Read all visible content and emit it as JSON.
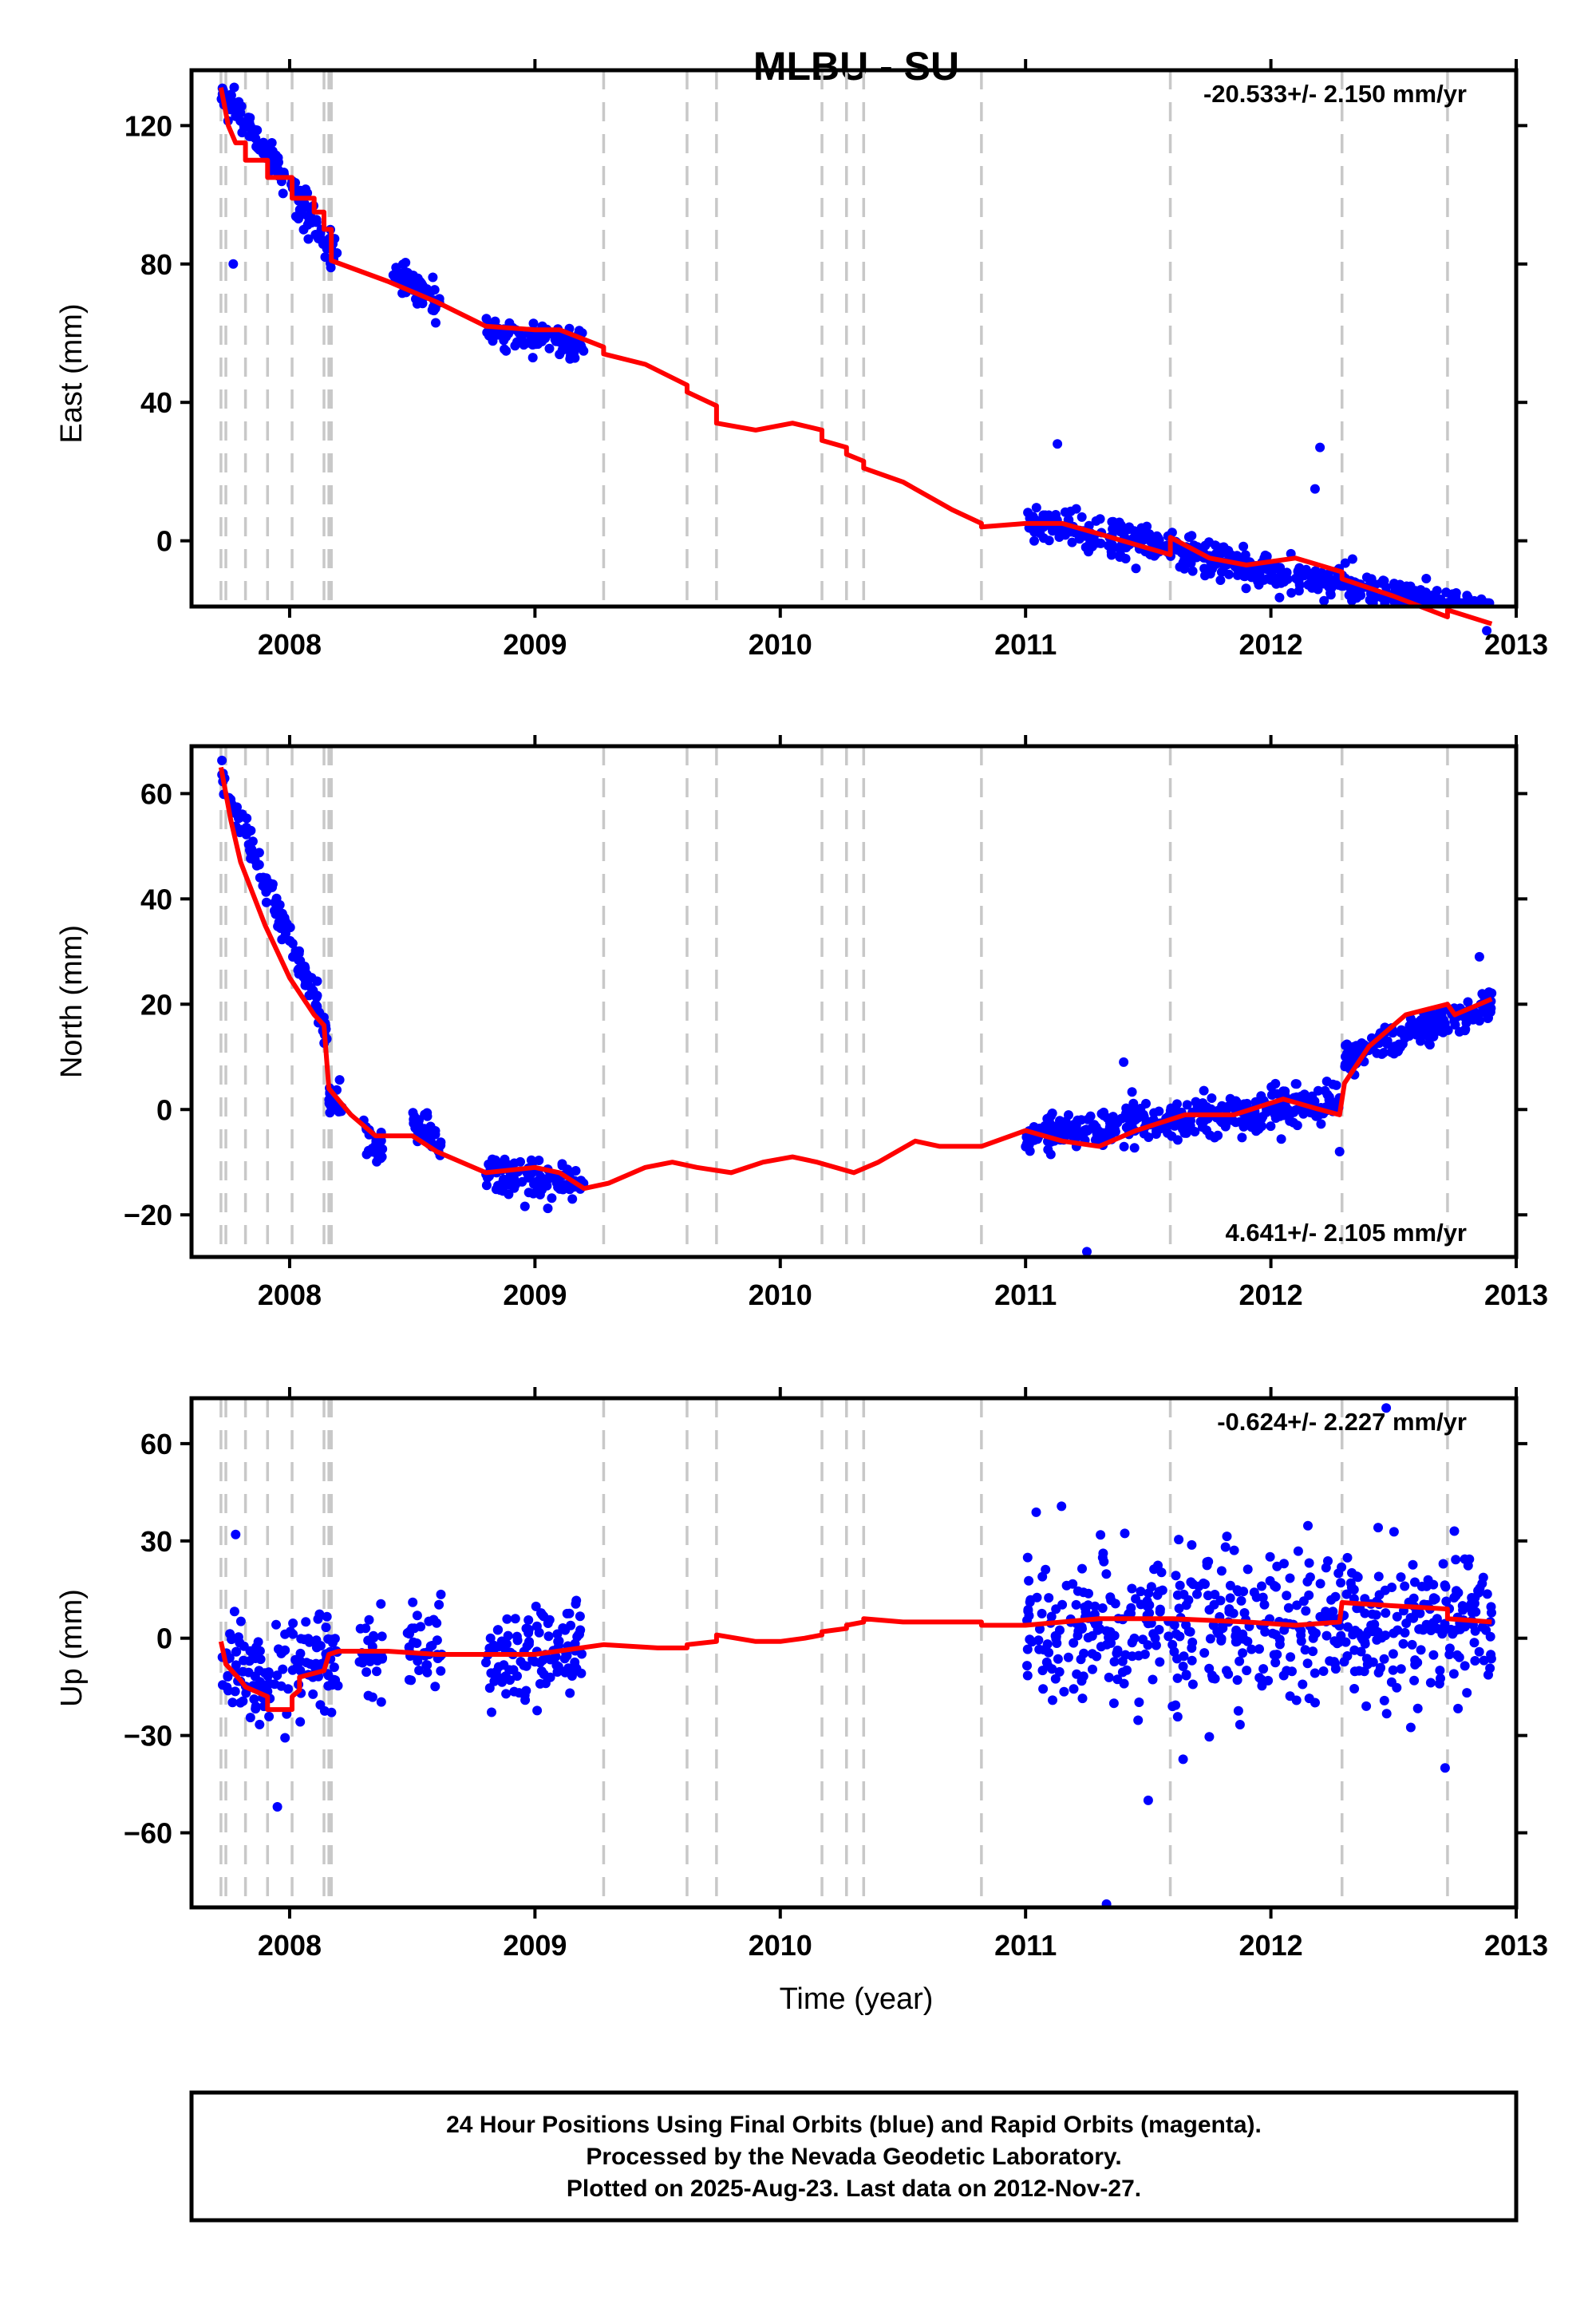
{
  "chart_data": {
    "type": "scatter",
    "title": "MLBU - SU",
    "xlabel": "Time (year)",
    "xlim": [
      2007.6,
      2013.0
    ],
    "xticks": [
      2008,
      2009,
      2010,
      2011,
      2012,
      2013
    ],
    "colors": {
      "final_orbits": "#0000ff",
      "model": "#ff0000",
      "offset_lines": "#c8c8c8"
    },
    "offset_epochs": [
      2007.72,
      2007.74,
      2007.82,
      2007.91,
      2008.01,
      2008.14,
      2008.16,
      2008.17,
      2009.28,
      2009.62,
      2009.74,
      2010.17,
      2010.27,
      2010.34,
      2010.82,
      2011.59,
      2012.29,
      2012.72
    ],
    "panels": [
      {
        "name": "east",
        "ylabel": "East (mm)",
        "ylim": [
          -19,
          136
        ],
        "yticks": [
          0,
          40,
          80,
          120
        ],
        "ytick_labels": [
          "0",
          "40",
          "80",
          "120"
        ],
        "rate_label": "-20.533+/- 2.150 mm/yr",
        "rate_position": "top-right",
        "model": [
          [
            2007.72,
            131
          ],
          [
            2007.75,
            120
          ],
          [
            2007.78,
            115
          ],
          [
            2007.82,
            115
          ],
          [
            2007.82,
            110
          ],
          [
            2007.91,
            110
          ],
          [
            2007.91,
            105
          ],
          [
            2008.01,
            105
          ],
          [
            2008.01,
            99
          ],
          [
            2008.1,
            99
          ],
          [
            2008.1,
            95
          ],
          [
            2008.14,
            95
          ],
          [
            2008.14,
            90
          ],
          [
            2008.17,
            90
          ],
          [
            2008.17,
            81
          ],
          [
            2008.4,
            75
          ],
          [
            2008.6,
            69
          ],
          [
            2008.8,
            62
          ],
          [
            2009.0,
            61
          ],
          [
            2009.1,
            61
          ],
          [
            2009.28,
            56
          ],
          [
            2009.28,
            54
          ],
          [
            2009.45,
            51
          ],
          [
            2009.62,
            45
          ],
          [
            2009.62,
            43
          ],
          [
            2009.74,
            39
          ],
          [
            2009.74,
            34
          ],
          [
            2009.9,
            32
          ],
          [
            2010.05,
            34
          ],
          [
            2010.17,
            32
          ],
          [
            2010.17,
            29
          ],
          [
            2010.27,
            27
          ],
          [
            2010.27,
            25
          ],
          [
            2010.34,
            23
          ],
          [
            2010.34,
            21
          ],
          [
            2010.5,
            17
          ],
          [
            2010.7,
            9
          ],
          [
            2010.82,
            5
          ],
          [
            2010.82,
            4
          ],
          [
            2011.0,
            5
          ],
          [
            2011.15,
            5
          ],
          [
            2011.3,
            2
          ],
          [
            2011.59,
            -4
          ],
          [
            2011.59,
            1
          ],
          [
            2011.75,
            -5
          ],
          [
            2011.9,
            -7
          ],
          [
            2012.1,
            -5
          ],
          [
            2012.29,
            -9
          ],
          [
            2012.29,
            -11
          ],
          [
            2012.5,
            -16
          ],
          [
            2012.72,
            -22
          ],
          [
            2012.72,
            -20
          ],
          [
            2012.9,
            -24
          ]
        ],
        "segments": [
          {
            "from": 2007.72,
            "to": 2008.2,
            "start": 131,
            "end": 82,
            "noise": 5
          },
          {
            "from": 2008.42,
            "to": 2008.62,
            "start": 79,
            "end": 68,
            "noise": 4.5
          },
          {
            "from": 2008.8,
            "to": 2009.2,
            "start": 61,
            "end": 57,
            "noise": 4
          },
          {
            "from": 2011.0,
            "to": 2012.9,
            "start": 6,
            "end": -22,
            "noise": 4.5
          }
        ],
        "outliers": [
          [
            2007.77,
            80
          ],
          [
            2011.13,
            28
          ],
          [
            2012.2,
            27
          ],
          [
            2012.18,
            15
          ],
          [
            2011.45,
            -8
          ],
          [
            2012.88,
            -26
          ]
        ]
      },
      {
        "name": "north",
        "ylabel": "North (mm)",
        "ylim": [
          -28,
          69
        ],
        "yticks": [
          -20,
          0,
          20,
          40,
          60
        ],
        "ytick_labels": [
          "−20",
          "0",
          "20",
          "40",
          "60"
        ],
        "rate_label": "4.641+/- 2.105 mm/yr",
        "rate_position": "bottom-right",
        "model": [
          [
            2007.72,
            65
          ],
          [
            2007.76,
            55
          ],
          [
            2007.8,
            47
          ],
          [
            2007.9,
            35
          ],
          [
            2008.0,
            25
          ],
          [
            2008.1,
            18
          ],
          [
            2008.14,
            16
          ],
          [
            2008.16,
            4
          ],
          [
            2008.25,
            -1
          ],
          [
            2008.35,
            -5
          ],
          [
            2008.5,
            -5
          ],
          [
            2008.6,
            -8
          ],
          [
            2008.8,
            -12
          ],
          [
            2009.0,
            -11
          ],
          [
            2009.1,
            -12
          ],
          [
            2009.2,
            -15
          ],
          [
            2009.3,
            -14
          ],
          [
            2009.45,
            -11
          ],
          [
            2009.56,
            -10
          ],
          [
            2009.66,
            -11
          ],
          [
            2009.8,
            -12
          ],
          [
            2009.93,
            -10
          ],
          [
            2010.05,
            -9
          ],
          [
            2010.15,
            -10
          ],
          [
            2010.3,
            -12
          ],
          [
            2010.4,
            -10
          ],
          [
            2010.55,
            -6
          ],
          [
            2010.65,
            -7
          ],
          [
            2010.82,
            -7
          ],
          [
            2011.0,
            -4
          ],
          [
            2011.15,
            -6
          ],
          [
            2011.3,
            -7
          ],
          [
            2011.45,
            -4
          ],
          [
            2011.65,
            -1
          ],
          [
            2011.85,
            -1
          ],
          [
            2012.05,
            2
          ],
          [
            2012.2,
            0
          ],
          [
            2012.28,
            -1
          ],
          [
            2012.3,
            5
          ],
          [
            2012.4,
            12
          ],
          [
            2012.55,
            18
          ],
          [
            2012.72,
            20
          ],
          [
            2012.75,
            18
          ],
          [
            2012.9,
            21
          ]
        ],
        "segments": [
          {
            "from": 2007.72,
            "to": 2008.16,
            "start": 64,
            "end": 14,
            "noise": 3
          },
          {
            "from": 2008.16,
            "to": 2008.22,
            "start": 3,
            "end": -2,
            "noise": 3
          },
          {
            "from": 2008.3,
            "to": 2008.38,
            "start": -4,
            "end": -7,
            "noise": 3
          },
          {
            "from": 2008.5,
            "to": 2008.62,
            "start": -2,
            "end": -6,
            "noise": 3
          },
          {
            "from": 2008.8,
            "to": 2009.2,
            "start": -12,
            "end": -14,
            "noise": 3
          },
          {
            "from": 2011.0,
            "to": 2012.28,
            "start": -5,
            "end": 1,
            "noise": 3.5
          },
          {
            "from": 2012.3,
            "to": 2012.9,
            "start": 10,
            "end": 20,
            "noise": 3
          }
        ],
        "outliers": [
          [
            2011.25,
            -27
          ],
          [
            2011.4,
            9
          ],
          [
            2012.28,
            -8
          ],
          [
            2012.85,
            29
          ]
        ]
      },
      {
        "name": "up",
        "ylabel": "Up (mm)",
        "ylim": [
          -83,
          74
        ],
        "yticks": [
          -60,
          -30,
          0,
          30,
          60
        ],
        "ytick_labels": [
          "−60",
          "−30",
          "0",
          "30",
          "60"
        ],
        "rate_label": "-0.624+/- 2.227 mm/yr",
        "rate_position": "top-right",
        "model": [
          [
            2007.72,
            -1
          ],
          [
            2007.74,
            -8
          ],
          [
            2007.8,
            -13
          ],
          [
            2007.82,
            -15
          ],
          [
            2007.91,
            -18
          ],
          [
            2007.91,
            -22
          ],
          [
            2008.01,
            -22
          ],
          [
            2008.01,
            -18
          ],
          [
            2008.04,
            -16
          ],
          [
            2008.04,
            -12
          ],
          [
            2008.14,
            -10
          ],
          [
            2008.16,
            -5
          ],
          [
            2008.2,
            -4
          ],
          [
            2008.4,
            -4
          ],
          [
            2008.6,
            -5
          ],
          [
            2008.8,
            -5
          ],
          [
            2009.0,
            -5
          ],
          [
            2009.28,
            -2
          ],
          [
            2009.5,
            -3
          ],
          [
            2009.62,
            -3
          ],
          [
            2009.62,
            -2
          ],
          [
            2009.74,
            -1
          ],
          [
            2009.74,
            1
          ],
          [
            2009.9,
            -1
          ],
          [
            2010.0,
            -1
          ],
          [
            2010.1,
            0
          ],
          [
            2010.17,
            1
          ],
          [
            2010.17,
            2
          ],
          [
            2010.27,
            3
          ],
          [
            2010.27,
            4
          ],
          [
            2010.34,
            5
          ],
          [
            2010.34,
            6
          ],
          [
            2010.5,
            5
          ],
          [
            2010.7,
            5
          ],
          [
            2010.82,
            5
          ],
          [
            2010.82,
            4
          ],
          [
            2011.0,
            4
          ],
          [
            2011.3,
            6
          ],
          [
            2011.6,
            6
          ],
          [
            2011.9,
            5
          ],
          [
            2012.1,
            4
          ],
          [
            2012.28,
            5
          ],
          [
            2012.29,
            11
          ],
          [
            2012.5,
            10
          ],
          [
            2012.72,
            9
          ],
          [
            2012.72,
            6
          ],
          [
            2012.9,
            5
          ]
        ],
        "segments": [
          {
            "from": 2007.72,
            "to": 2008.2,
            "start": -10,
            "end": -8,
            "noise": 14
          },
          {
            "from": 2008.28,
            "to": 2008.38,
            "start": -5,
            "end": -5,
            "noise": 14
          },
          {
            "from": 2008.48,
            "to": 2008.62,
            "start": -3,
            "end": -3,
            "noise": 14
          },
          {
            "from": 2008.8,
            "to": 2009.2,
            "start": -6,
            "end": -4,
            "noise": 13
          },
          {
            "from": 2011.0,
            "to": 2012.9,
            "start": 3,
            "end": 6,
            "noise": 20
          }
        ],
        "outliers": [
          [
            2011.33,
            -82
          ],
          [
            2012.47,
            71
          ],
          [
            2007.78,
            32
          ],
          [
            2011.5,
            -50
          ],
          [
            2012.71,
            -40
          ],
          [
            2007.95,
            -52
          ]
        ]
      }
    ]
  },
  "footer": {
    "line1": "24 Hour Positions Using Final Orbits (blue) and Rapid Orbits (magenta).",
    "line2": "Processed by the Nevada Geodetic Laboratory.",
    "line3": "Plotted on 2025-Aug-23. Last data on 2012-Nov-27."
  }
}
